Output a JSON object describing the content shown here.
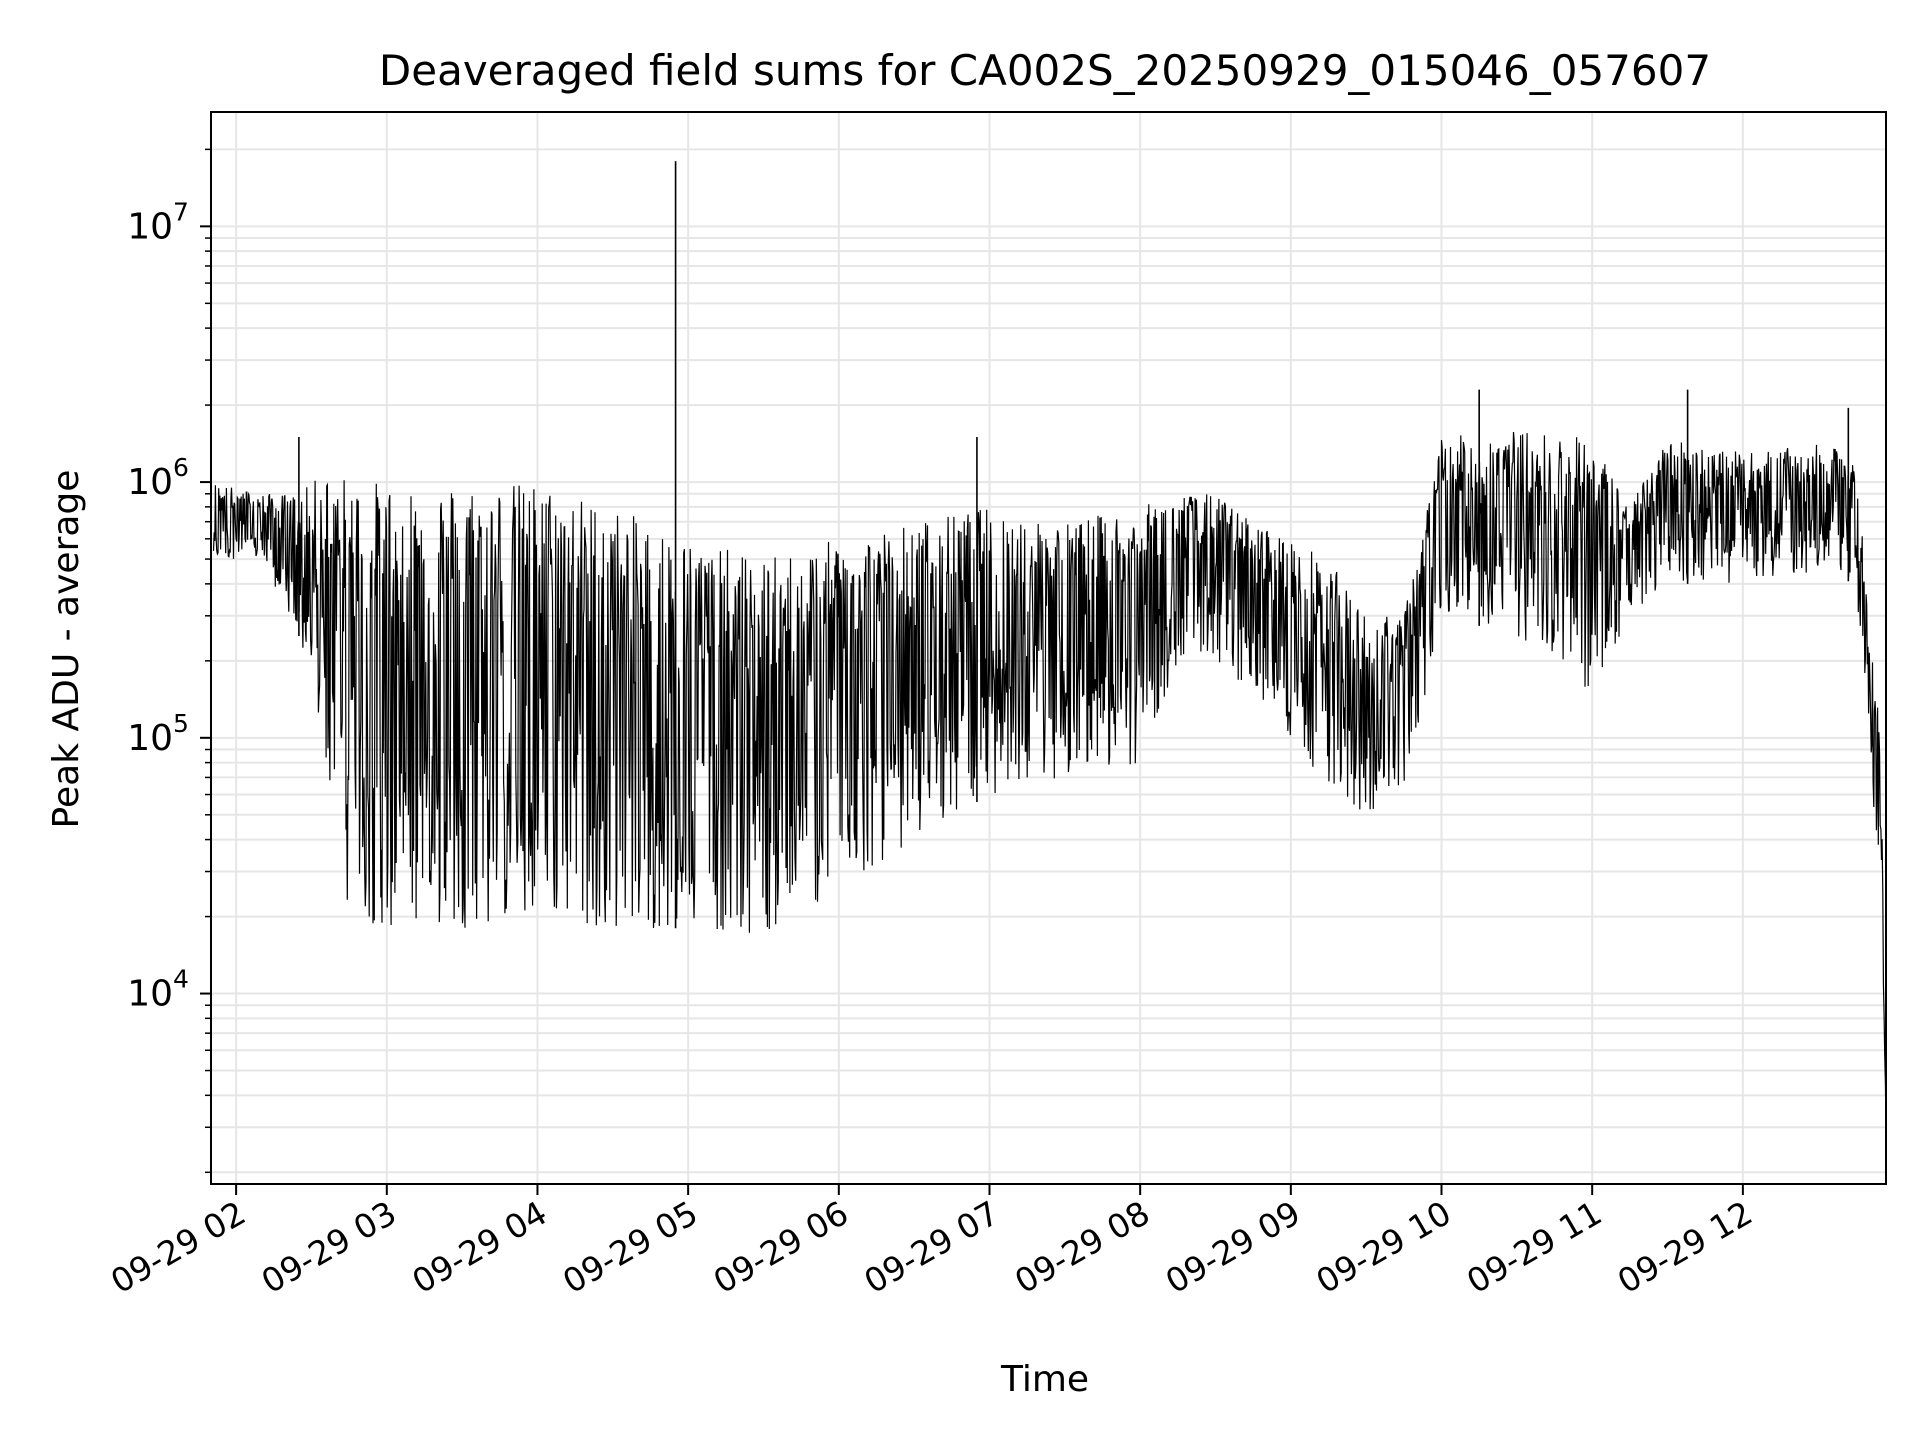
{
  "chart_data": {
    "type": "line",
    "title": "Deaveraged field sums for CA002S_20250929_015046_057607",
    "xlabel": "Time",
    "ylabel": "Peak ADU - average",
    "yscale": "log",
    "grid": true,
    "line_color": "#000000",
    "grid_color": "#e6e6e6",
    "x_ticks": [
      {
        "label": "09-29 02",
        "hour": 2
      },
      {
        "label": "09-29 03",
        "hour": 3
      },
      {
        "label": "09-29 04",
        "hour": 4
      },
      {
        "label": "09-29 05",
        "hour": 5
      },
      {
        "label": "09-29 06",
        "hour": 6
      },
      {
        "label": "09-29 07",
        "hour": 7
      },
      {
        "label": "09-29 08",
        "hour": 8
      },
      {
        "label": "09-29 09",
        "hour": 9
      },
      {
        "label": "09-29 10",
        "hour": 10
      },
      {
        "label": "09-29 11",
        "hour": 11
      },
      {
        "label": "09-29 12",
        "hour": 12
      }
    ],
    "y_ticks": [
      {
        "base": "10",
        "exp": "4",
        "value": 10000
      },
      {
        "base": "10",
        "exp": "5",
        "value": 100000
      },
      {
        "base": "10",
        "exp": "6",
        "value": 1000000
      },
      {
        "base": "10",
        "exp": "7",
        "value": 10000000
      }
    ],
    "xlim": [
      "2025-09-29 01:50",
      "2025-09-29 12:57"
    ],
    "ylim": [
      1800,
      28000000
    ],
    "envelope": {
      "x": [
        "01:51",
        "02:10",
        "02:25",
        "02:35",
        "02:45",
        "03:00",
        "03:30",
        "04:00",
        "04:30",
        "05:00",
        "05:30",
        "06:00",
        "06:30",
        "07:00",
        "07:30",
        "08:00",
        "08:15",
        "08:30",
        "08:45",
        "09:00",
        "09:15",
        "09:30",
        "09:45",
        "10:00",
        "10:30",
        "11:00",
        "11:15",
        "11:30",
        "12:00",
        "12:30",
        "12:45",
        "12:50",
        "12:55",
        "12:57"
      ],
      "upper": [
        1000000,
        900000,
        900000,
        1100000,
        1050000,
        1000000,
        1000000,
        1000000,
        800000,
        600000,
        500000,
        600000,
        700000,
        800000,
        700000,
        800000,
        900000,
        900000,
        700000,
        600000,
        500000,
        300000,
        300000,
        1500000,
        1600000,
        1500000,
        800000,
        1500000,
        1300000,
        1400000,
        1300000,
        300000,
        100000,
        3000
      ],
      "lower": [
        500000,
        500000,
        250000,
        90000,
        20000,
        18000,
        18000,
        20000,
        18000,
        18000,
        17000,
        25000,
        40000,
        60000,
        70000,
        80000,
        200000,
        200000,
        150000,
        100000,
        60000,
        50000,
        60000,
        300000,
        250000,
        150000,
        300000,
        400000,
        400000,
        450000,
        400000,
        80000,
        30000,
        2800
      ]
    },
    "peaks": [
      {
        "x": "04:55",
        "y": 18000000
      },
      {
        "x": "10:15",
        "y": 2300000
      },
      {
        "x": "11:38",
        "y": 2300000
      },
      {
        "x": "12:42",
        "y": 1950000
      },
      {
        "x": "06:55",
        "y": 1500000
      },
      {
        "x": "02:25",
        "y": 1500000
      }
    ]
  }
}
